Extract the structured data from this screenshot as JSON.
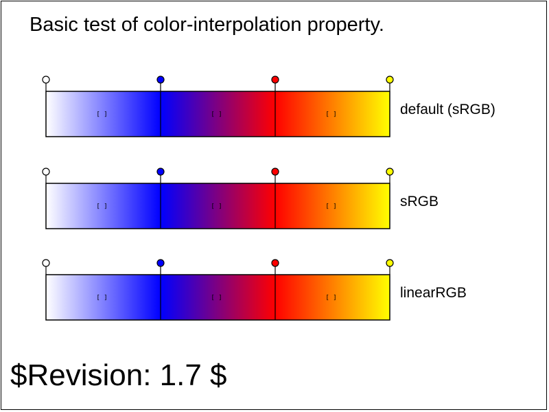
{
  "title": "Basic test of color-interpolation property.",
  "revision": "$Revision: 1.7 $",
  "stops": [
    {
      "name": "white",
      "color": "#ffffff"
    },
    {
      "name": "blue",
      "color": "#0000ff"
    },
    {
      "name": "red",
      "color": "#ff0000"
    },
    {
      "name": "yellow",
      "color": "#ffff00"
    }
  ],
  "segment_marker": "[ ]",
  "rows": [
    {
      "label": "default (sRGB)"
    },
    {
      "label": "sRGB"
    },
    {
      "label": "linearRGB"
    }
  ]
}
